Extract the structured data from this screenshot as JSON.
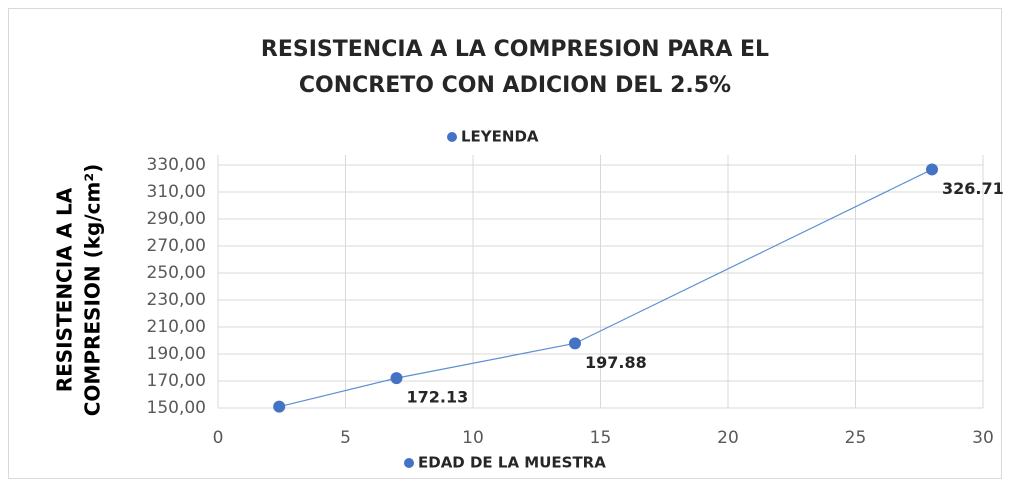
{
  "chart_data": {
    "type": "line",
    "title": [
      "RESISTENCIA A LA COMPRESION PARA EL",
      "CONCRETO CON ADICION DEL 2.5%"
    ],
    "ylabel": [
      "RESISTENCIA A LA",
      "COMPRESION  (kg/cm²)"
    ],
    "xlabel": "EDAD DE LA MUESTRA",
    "x": [
      2.4,
      7,
      14,
      28
    ],
    "series": [
      {
        "name": "LEYENDA",
        "color": "#4472c4",
        "values": [
          151,
          172.13,
          197.88,
          326.71
        ],
        "value_labels": [
          null,
          "172.13",
          "197.88",
          "326.71"
        ]
      }
    ],
    "xlim": [
      0,
      30
    ],
    "xticks": [
      0,
      5,
      10,
      15,
      20,
      25,
      30
    ],
    "ylim": [
      150,
      330
    ],
    "yticks": [
      {
        "value": 150,
        "label": "150,00"
      },
      {
        "value": 170,
        "label": "170,00"
      },
      {
        "value": 190,
        "label": "190,00"
      },
      {
        "value": 210,
        "label": "210,00"
      },
      {
        "value": 230,
        "label": "230,00"
      },
      {
        "value": 250,
        "label": "250,00"
      },
      {
        "value": 270,
        "label": "270,00"
      },
      {
        "value": 290,
        "label": "290,00"
      },
      {
        "value": 310,
        "label": "310,00"
      },
      {
        "value": 330,
        "label": "330,00"
      }
    ],
    "grid": true
  }
}
